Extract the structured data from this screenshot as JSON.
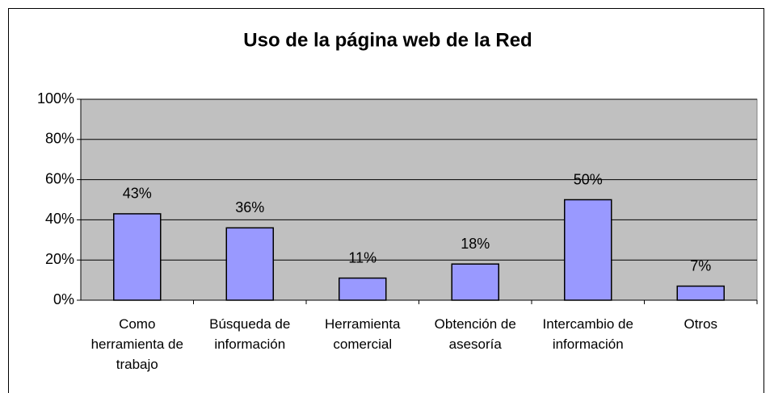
{
  "chart_data": {
    "type": "bar",
    "title": "Uso de la página web de la Red",
    "categories": [
      "Como herramienta de trabajo",
      "Búsqueda de información",
      "Herramienta comercial",
      "Obtención de asesoría",
      "Intercambio de información",
      "Otros"
    ],
    "values": [
      43,
      36,
      11,
      18,
      50,
      7
    ],
    "value_labels": [
      "43%",
      "36%",
      "11%",
      "18%",
      "50%",
      "7%"
    ],
    "color": "#9999ff",
    "ylim": [
      0,
      100
    ],
    "yticks": [
      {
        "value": 0,
        "label": "0%"
      },
      {
        "value": 20,
        "label": "20%"
      },
      {
        "value": 40,
        "label": "40%"
      },
      {
        "value": 60,
        "label": "60%"
      },
      {
        "value": 80,
        "label": "80%"
      },
      {
        "value": 100,
        "label": "100%"
      }
    ],
    "grid": true
  }
}
